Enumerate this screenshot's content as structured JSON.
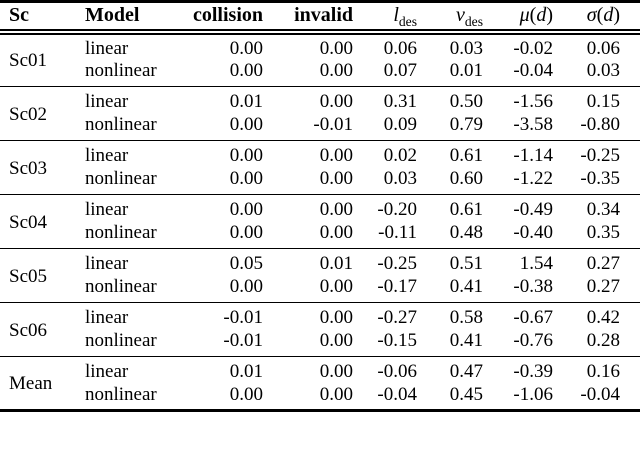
{
  "table": {
    "header": {
      "sc": "Sc",
      "model": "Model",
      "collision": "collision",
      "invalid": "invalid",
      "l_des": {
        "base": "l",
        "sub": "des"
      },
      "v_des": {
        "base": "v",
        "sub": "des"
      },
      "mu_d": {
        "fn": "μ",
        "open": "(",
        "var": "d",
        "close": ")"
      },
      "sigma_d": {
        "fn": "σ",
        "open": "(",
        "var": "d",
        "close": ")"
      }
    },
    "groups": [
      {
        "sc": "Sc01",
        "rows": [
          {
            "model": "linear",
            "values": [
              "0.00",
              "0.00",
              "0.06",
              "0.03",
              "-0.02",
              "0.06"
            ]
          },
          {
            "model": "nonlinear",
            "values": [
              "0.00",
              "0.00",
              "0.07",
              "0.01",
              "-0.04",
              "0.03"
            ]
          }
        ]
      },
      {
        "sc": "Sc02",
        "rows": [
          {
            "model": "linear",
            "values": [
              "0.01",
              "0.00",
              "0.31",
              "0.50",
              "-1.56",
              "0.15"
            ]
          },
          {
            "model": "nonlinear",
            "values": [
              "0.00",
              "-0.01",
              "0.09",
              "0.79",
              "-3.58",
              "-0.80"
            ]
          }
        ]
      },
      {
        "sc": "Sc03",
        "rows": [
          {
            "model": "linear",
            "values": [
              "0.00",
              "0.00",
              "0.02",
              "0.61",
              "-1.14",
              "-0.25"
            ]
          },
          {
            "model": "nonlinear",
            "values": [
              "0.00",
              "0.00",
              "0.03",
              "0.60",
              "-1.22",
              "-0.35"
            ]
          }
        ]
      },
      {
        "sc": "Sc04",
        "rows": [
          {
            "model": "linear",
            "values": [
              "0.00",
              "0.00",
              "-0.20",
              "0.61",
              "-0.49",
              "0.34"
            ]
          },
          {
            "model": "nonlinear",
            "values": [
              "0.00",
              "0.00",
              "-0.11",
              "0.48",
              "-0.40",
              "0.35"
            ]
          }
        ]
      },
      {
        "sc": "Sc05",
        "rows": [
          {
            "model": "linear",
            "values": [
              "0.05",
              "0.01",
              "-0.25",
              "0.51",
              "1.54",
              "0.27"
            ]
          },
          {
            "model": "nonlinear",
            "values": [
              "0.00",
              "0.00",
              "-0.17",
              "0.41",
              "-0.38",
              "0.27"
            ]
          }
        ]
      },
      {
        "sc": "Sc06",
        "rows": [
          {
            "model": "linear",
            "values": [
              "-0.01",
              "0.00",
              "-0.27",
              "0.58",
              "-0.67",
              "0.42"
            ]
          },
          {
            "model": "nonlinear",
            "values": [
              "-0.01",
              "0.00",
              "-0.15",
              "0.41",
              "-0.76",
              "0.28"
            ]
          }
        ]
      },
      {
        "sc": "Mean",
        "rows": [
          {
            "model": "linear",
            "values": [
              "0.01",
              "0.00",
              "-0.06",
              "0.47",
              "-0.39",
              "0.16"
            ]
          },
          {
            "model": "nonlinear",
            "values": [
              "0.00",
              "0.00",
              "-0.04",
              "0.45",
              "-1.06",
              "-0.04"
            ]
          }
        ]
      }
    ]
  }
}
